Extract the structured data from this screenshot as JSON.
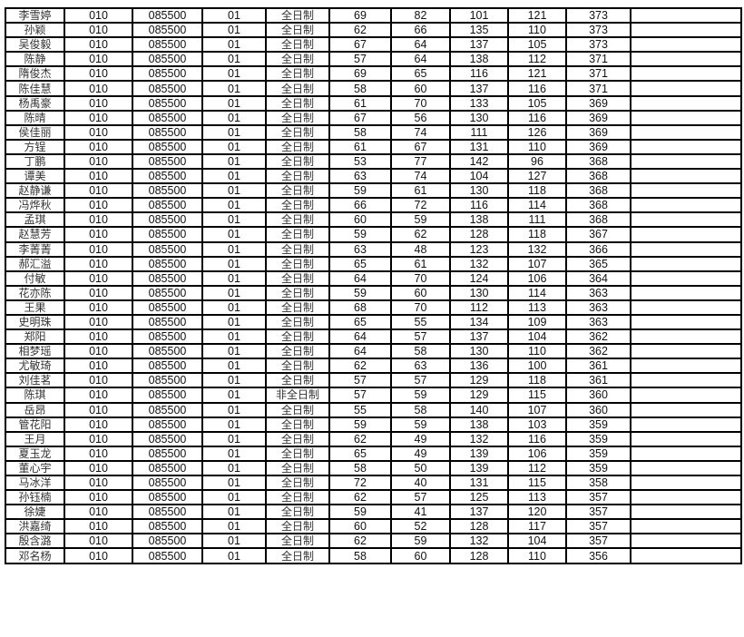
{
  "rows": [
    [
      "李雪婷",
      "010",
      "085500",
      "01",
      "全日制",
      "69",
      "82",
      "101",
      "121",
      "373",
      ""
    ],
    [
      "孙颖",
      "010",
      "085500",
      "01",
      "全日制",
      "62",
      "66",
      "135",
      "110",
      "373",
      ""
    ],
    [
      "吴俊毅",
      "010",
      "085500",
      "01",
      "全日制",
      "67",
      "64",
      "137",
      "105",
      "373",
      ""
    ],
    [
      "陈静",
      "010",
      "085500",
      "01",
      "全日制",
      "57",
      "64",
      "138",
      "112",
      "371",
      ""
    ],
    [
      "隋俊杰",
      "010",
      "085500",
      "01",
      "全日制",
      "69",
      "65",
      "116",
      "121",
      "371",
      ""
    ],
    [
      "陈佳慧",
      "010",
      "085500",
      "01",
      "全日制",
      "58",
      "60",
      "137",
      "116",
      "371",
      ""
    ],
    [
      "杨禹豪",
      "010",
      "085500",
      "01",
      "全日制",
      "61",
      "70",
      "133",
      "105",
      "369",
      ""
    ],
    [
      "陈晴",
      "010",
      "085500",
      "01",
      "全日制",
      "67",
      "56",
      "130",
      "116",
      "369",
      ""
    ],
    [
      "侯佳丽",
      "010",
      "085500",
      "01",
      "全日制",
      "58",
      "74",
      "111",
      "126",
      "369",
      ""
    ],
    [
      "方锃",
      "010",
      "085500",
      "01",
      "全日制",
      "61",
      "67",
      "131",
      "110",
      "369",
      ""
    ],
    [
      "丁鹏",
      "010",
      "085500",
      "01",
      "全日制",
      "53",
      "77",
      "142",
      "96",
      "368",
      ""
    ],
    [
      "谭美",
      "010",
      "085500",
      "01",
      "全日制",
      "63",
      "74",
      "104",
      "127",
      "368",
      ""
    ],
    [
      "赵静谦",
      "010",
      "085500",
      "01",
      "全日制",
      "59",
      "61",
      "130",
      "118",
      "368",
      ""
    ],
    [
      "冯烨秋",
      "010",
      "085500",
      "01",
      "全日制",
      "66",
      "72",
      "116",
      "114",
      "368",
      ""
    ],
    [
      "孟琪",
      "010",
      "085500",
      "01",
      "全日制",
      "60",
      "59",
      "138",
      "111",
      "368",
      ""
    ],
    [
      "赵慧芳",
      "010",
      "085500",
      "01",
      "全日制",
      "59",
      "62",
      "128",
      "118",
      "367",
      ""
    ],
    [
      "李菁菁",
      "010",
      "085500",
      "01",
      "全日制",
      "63",
      "48",
      "123",
      "132",
      "366",
      ""
    ],
    [
      "郝汇溢",
      "010",
      "085500",
      "01",
      "全日制",
      "65",
      "61",
      "132",
      "107",
      "365",
      ""
    ],
    [
      "付敏",
      "010",
      "085500",
      "01",
      "全日制",
      "64",
      "70",
      "124",
      "106",
      "364",
      ""
    ],
    [
      "花亦陈",
      "010",
      "085500",
      "01",
      "全日制",
      "59",
      "60",
      "130",
      "114",
      "363",
      ""
    ],
    [
      "王果",
      "010",
      "085500",
      "01",
      "全日制",
      "68",
      "70",
      "112",
      "113",
      "363",
      ""
    ],
    [
      "史明珠",
      "010",
      "085500",
      "01",
      "全日制",
      "65",
      "55",
      "134",
      "109",
      "363",
      ""
    ],
    [
      "郑阳",
      "010",
      "085500",
      "01",
      "全日制",
      "64",
      "57",
      "137",
      "104",
      "362",
      ""
    ],
    [
      "相梦瑶",
      "010",
      "085500",
      "01",
      "全日制",
      "64",
      "58",
      "130",
      "110",
      "362",
      ""
    ],
    [
      "尤敏琦",
      "010",
      "085500",
      "01",
      "全日制",
      "62",
      "63",
      "136",
      "100",
      "361",
      ""
    ],
    [
      "刘佳茗",
      "010",
      "085500",
      "01",
      "全日制",
      "57",
      "57",
      "129",
      "118",
      "361",
      ""
    ],
    [
      "陈琪",
      "010",
      "085500",
      "01",
      "非全日制",
      "57",
      "59",
      "129",
      "115",
      "360",
      ""
    ],
    [
      "岳昂",
      "010",
      "085500",
      "01",
      "全日制",
      "55",
      "58",
      "140",
      "107",
      "360",
      ""
    ],
    [
      "管花阳",
      "010",
      "085500",
      "01",
      "全日制",
      "59",
      "59",
      "138",
      "103",
      "359",
      ""
    ],
    [
      "王月",
      "010",
      "085500",
      "01",
      "全日制",
      "62",
      "49",
      "132",
      "116",
      "359",
      ""
    ],
    [
      "夏玉龙",
      "010",
      "085500",
      "01",
      "全日制",
      "65",
      "49",
      "139",
      "106",
      "359",
      ""
    ],
    [
      "董心宇",
      "010",
      "085500",
      "01",
      "全日制",
      "58",
      "50",
      "139",
      "112",
      "359",
      ""
    ],
    [
      "马冰洋",
      "010",
      "085500",
      "01",
      "全日制",
      "72",
      "40",
      "131",
      "115",
      "358",
      ""
    ],
    [
      "孙钰楠",
      "010",
      "085500",
      "01",
      "全日制",
      "62",
      "57",
      "125",
      "113",
      "357",
      ""
    ],
    [
      "徐婕",
      "010",
      "085500",
      "01",
      "全日制",
      "59",
      "41",
      "137",
      "120",
      "357",
      ""
    ],
    [
      "洪嘉绮",
      "010",
      "085500",
      "01",
      "全日制",
      "60",
      "52",
      "128",
      "117",
      "357",
      ""
    ],
    [
      "殷含潞",
      "010",
      "085500",
      "01",
      "全日制",
      "62",
      "59",
      "132",
      "104",
      "357",
      ""
    ],
    [
      "邓名杨",
      "010",
      "085500",
      "01",
      "全日制",
      "58",
      "60",
      "128",
      "110",
      "356",
      ""
    ]
  ]
}
